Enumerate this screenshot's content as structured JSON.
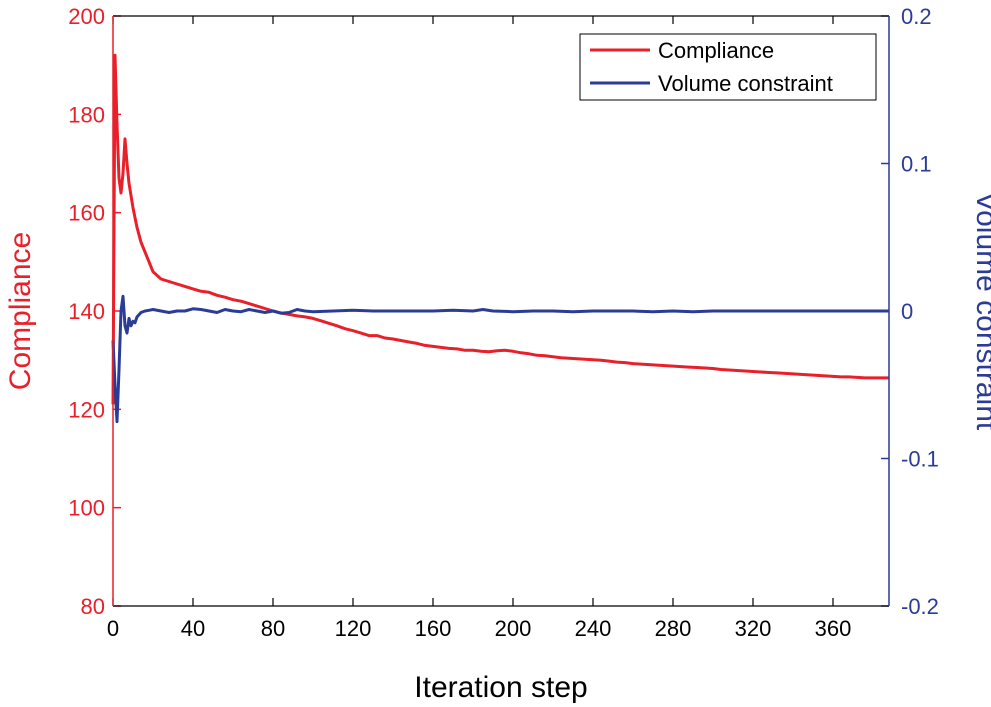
{
  "chart_data": {
    "type": "line",
    "xlabel": "Iteration step",
    "xlim": [
      0,
      388
    ],
    "x_ticks": [
      "0",
      "40",
      "80",
      "120",
      "160",
      "200",
      "240",
      "280",
      "320",
      "360"
    ],
    "x_tick_values": [
      0,
      40,
      80,
      120,
      160,
      200,
      240,
      280,
      320,
      360
    ],
    "left_axis": {
      "label": "Compliance",
      "color": "#e8202a",
      "ylim": [
        80,
        200
      ],
      "ticks": [
        "80",
        "100",
        "120",
        "140",
        "160",
        "180",
        "200"
      ],
      "tick_values": [
        80,
        100,
        120,
        140,
        160,
        180,
        200
      ]
    },
    "right_axis": {
      "label": "Volume constraint",
      "color": "#2b3c97",
      "ylim": [
        -0.2,
        0.2
      ],
      "ticks": [
        "-0.2",
        "-0.1",
        "0",
        "0.1",
        "0.2"
      ],
      "tick_values": [
        -0.2,
        -0.1,
        0,
        0.1,
        0.2
      ]
    },
    "legend_position": "top-right",
    "series": [
      {
        "name": "Compliance",
        "axis": "left",
        "color": "#e8202a",
        "points": [
          [
            0,
            121
          ],
          [
            1,
            192
          ],
          [
            2,
            178
          ],
          [
            3,
            167
          ],
          [
            4,
            164
          ],
          [
            5,
            168
          ],
          [
            6,
            175
          ],
          [
            7,
            170
          ],
          [
            8,
            166
          ],
          [
            10,
            161
          ],
          [
            12,
            157
          ],
          [
            14,
            154
          ],
          [
            16,
            152
          ],
          [
            18,
            150
          ],
          [
            20,
            148
          ],
          [
            24,
            146.5
          ],
          [
            28,
            146
          ],
          [
            32,
            145.5
          ],
          [
            36,
            145
          ],
          [
            40,
            144.5
          ],
          [
            44,
            144
          ],
          [
            48,
            143.8
          ],
          [
            52,
            143.2
          ],
          [
            56,
            142.8
          ],
          [
            60,
            142.3
          ],
          [
            64,
            142
          ],
          [
            68,
            141.5
          ],
          [
            72,
            141
          ],
          [
            76,
            140.5
          ],
          [
            80,
            140
          ],
          [
            84,
            139.6
          ],
          [
            88,
            139.3
          ],
          [
            92,
            139
          ],
          [
            96,
            138.8
          ],
          [
            100,
            138.5
          ],
          [
            104,
            138
          ],
          [
            108,
            137.5
          ],
          [
            112,
            137
          ],
          [
            116,
            136.4
          ],
          [
            120,
            136
          ],
          [
            124,
            135.5
          ],
          [
            128,
            135
          ],
          [
            132,
            135
          ],
          [
            136,
            134.5
          ],
          [
            140,
            134.3
          ],
          [
            144,
            134
          ],
          [
            148,
            133.7
          ],
          [
            152,
            133.4
          ],
          [
            156,
            133
          ],
          [
            160,
            132.8
          ],
          [
            164,
            132.6
          ],
          [
            168,
            132.4
          ],
          [
            172,
            132.3
          ],
          [
            176,
            132
          ],
          [
            180,
            132
          ],
          [
            184,
            131.8
          ],
          [
            188,
            131.7
          ],
          [
            192,
            131.9
          ],
          [
            196,
            132
          ],
          [
            200,
            131.8
          ],
          [
            204,
            131.5
          ],
          [
            208,
            131.3
          ],
          [
            212,
            131
          ],
          [
            216,
            130.9
          ],
          [
            220,
            130.7
          ],
          [
            224,
            130.5
          ],
          [
            228,
            130.4
          ],
          [
            232,
            130.3
          ],
          [
            236,
            130.2
          ],
          [
            240,
            130.1
          ],
          [
            244,
            130
          ],
          [
            248,
            129.8
          ],
          [
            252,
            129.6
          ],
          [
            256,
            129.5
          ],
          [
            260,
            129.3
          ],
          [
            264,
            129.2
          ],
          [
            268,
            129.1
          ],
          [
            272,
            129
          ],
          [
            276,
            128.9
          ],
          [
            280,
            128.8
          ],
          [
            284,
            128.7
          ],
          [
            288,
            128.6
          ],
          [
            292,
            128.5
          ],
          [
            296,
            128.4
          ],
          [
            300,
            128.3
          ],
          [
            304,
            128.1
          ],
          [
            308,
            128
          ],
          [
            312,
            127.9
          ],
          [
            316,
            127.8
          ],
          [
            320,
            127.7
          ],
          [
            324,
            127.6
          ],
          [
            328,
            127.5
          ],
          [
            332,
            127.4
          ],
          [
            336,
            127.3
          ],
          [
            340,
            127.2
          ],
          [
            344,
            127.1
          ],
          [
            348,
            127
          ],
          [
            352,
            126.9
          ],
          [
            356,
            126.8
          ],
          [
            360,
            126.7
          ],
          [
            364,
            126.6
          ],
          [
            368,
            126.6
          ],
          [
            372,
            126.5
          ],
          [
            376,
            126.4
          ],
          [
            380,
            126.4
          ],
          [
            384,
            126.4
          ],
          [
            388,
            126.4
          ]
        ]
      },
      {
        "name": "Volume constraint",
        "axis": "right",
        "color": "#2b3c97",
        "points": [
          [
            0,
            -0.02
          ],
          [
            1,
            -0.05
          ],
          [
            2,
            -0.075
          ],
          [
            3,
            -0.04
          ],
          [
            4,
            0.0
          ],
          [
            5,
            0.01
          ],
          [
            6,
            -0.01
          ],
          [
            7,
            -0.015
          ],
          [
            8,
            -0.005
          ],
          [
            9,
            -0.01
          ],
          [
            10,
            -0.007
          ],
          [
            11,
            -0.008
          ],
          [
            12,
            -0.004
          ],
          [
            14,
            -0.001
          ],
          [
            16,
            0.0
          ],
          [
            18,
            0.0005
          ],
          [
            20,
            0.001
          ],
          [
            24,
            0.0
          ],
          [
            28,
            -0.001
          ],
          [
            32,
            0.0
          ],
          [
            36,
            0.0
          ],
          [
            40,
            0.0015
          ],
          [
            44,
            0.001
          ],
          [
            48,
            0.0
          ],
          [
            52,
            -0.001
          ],
          [
            56,
            0.001
          ],
          [
            60,
            0.0
          ],
          [
            64,
            -0.0005
          ],
          [
            68,
            0.001
          ],
          [
            72,
            0.0
          ],
          [
            76,
            -0.001
          ],
          [
            80,
            0.0
          ],
          [
            84,
            -0.0015
          ],
          [
            88,
            -0.001
          ],
          [
            92,
            0.001
          ],
          [
            96,
            0.0
          ],
          [
            100,
            -0.0005
          ],
          [
            110,
            0.0
          ],
          [
            120,
            0.0005
          ],
          [
            130,
            0.0
          ],
          [
            140,
            0.0
          ],
          [
            150,
            0.0
          ],
          [
            160,
            0.0
          ],
          [
            170,
            0.0005
          ],
          [
            180,
            0.0
          ],
          [
            185,
            0.001
          ],
          [
            190,
            0.0
          ],
          [
            200,
            -0.0005
          ],
          [
            210,
            0.0
          ],
          [
            220,
            0.0
          ],
          [
            230,
            -0.0005
          ],
          [
            240,
            0.0
          ],
          [
            250,
            0.0
          ],
          [
            260,
            0.0
          ],
          [
            270,
            -0.0005
          ],
          [
            280,
            0.0
          ],
          [
            290,
            -0.0005
          ],
          [
            300,
            0.0
          ],
          [
            320,
            0.0
          ],
          [
            340,
            0.0
          ],
          [
            360,
            0.0
          ],
          [
            388,
            0.0
          ]
        ]
      }
    ]
  }
}
